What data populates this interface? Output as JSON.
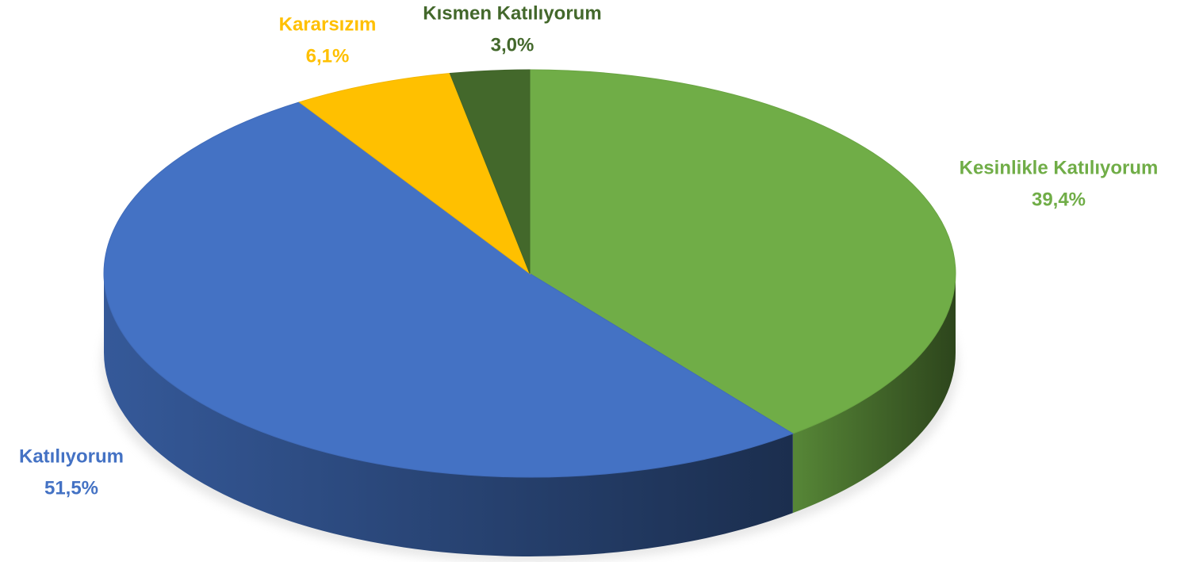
{
  "chart_data": {
    "type": "pie",
    "categories": [
      "Kesinlikle Katılıyorum",
      "Katılıyorum",
      "Kararsızım",
      "Kısmen Katılıyorum"
    ],
    "values": [
      39.4,
      51.5,
      6.1,
      3.0
    ],
    "value_labels": [
      "39,4%",
      "51,5%",
      "6,1%",
      "3,0%"
    ],
    "colors": [
      "#70ad47",
      "#4472c4",
      "#ffc000",
      "#43682b"
    ],
    "3d": true
  }
}
